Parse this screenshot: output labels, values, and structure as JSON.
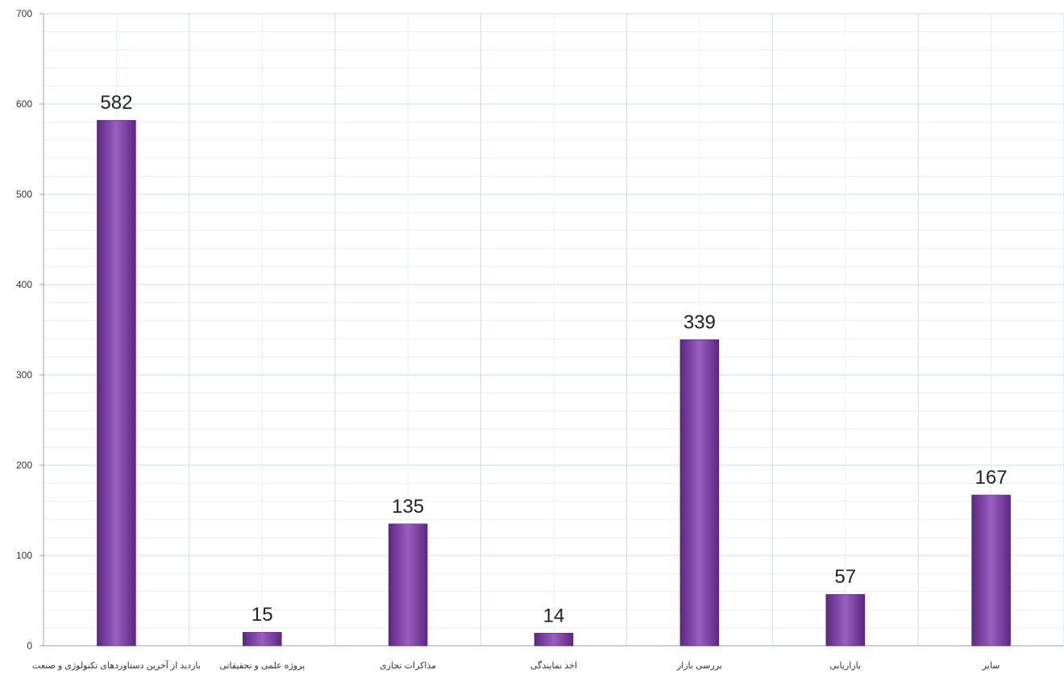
{
  "chart_data": {
    "type": "bar",
    "title": "",
    "xlabel": "",
    "ylabel": "",
    "categories": [
      "بازدید از آخرین دستاوردهای تکنولوژی و صنعت",
      "پروژه علمی و تحقیقاتی",
      "مذاکرات تجاری",
      "اخذ نمایندگی",
      "بررسی بازار",
      "بازاریابی",
      "سایر"
    ],
    "values": [
      582,
      15,
      135,
      14,
      339,
      57,
      167
    ],
    "data_labels": [
      "582",
      "15",
      "135",
      "14",
      "339",
      "57",
      "167"
    ],
    "ylim": [
      0,
      700
    ],
    "yticks": [
      0,
      100,
      200,
      300,
      400,
      500,
      600,
      700
    ],
    "ytick_labels": [
      "0",
      "100",
      "200",
      "300",
      "400",
      "500",
      "600",
      "700"
    ],
    "grid": true,
    "legend": "none",
    "colors": {
      "bar_dark": "#5e2683",
      "bar_light": "#9a5fbf",
      "grid_major": "#d2dbe8",
      "grid_minor": "#e9eef5",
      "axis": "#9aa4b4"
    }
  }
}
